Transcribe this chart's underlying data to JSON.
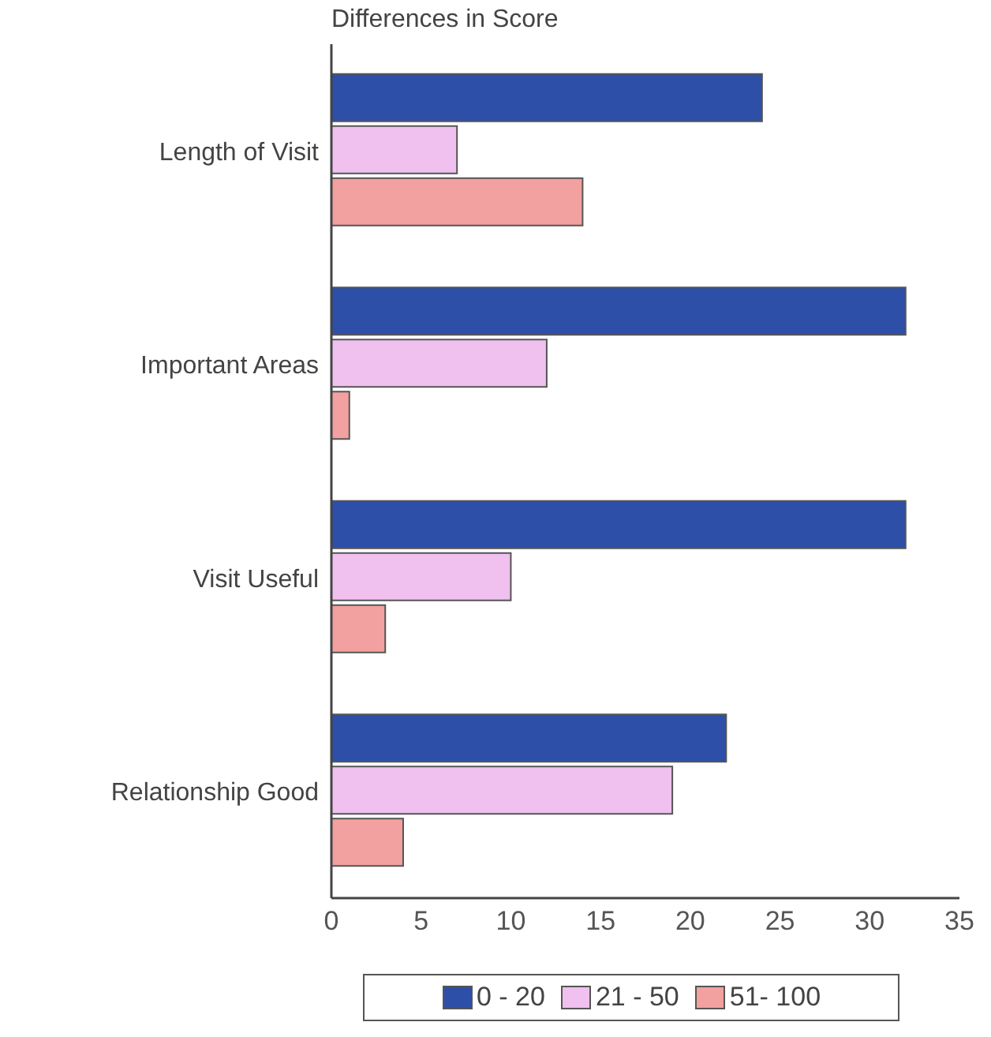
{
  "chart_data": {
    "type": "bar",
    "orientation": "horizontal",
    "title": "Differences in Score",
    "categories": [
      "Length of Visit",
      "Important Areas",
      "Visit Useful",
      "Relationship Good"
    ],
    "series": [
      {
        "name": "0 - 20",
        "color": "#2e4fa8",
        "values": [
          24,
          32,
          32,
          22
        ]
      },
      {
        "name": "21 - 50",
        "color": "#f0c0ee",
        "values": [
          7,
          12,
          10,
          19
        ]
      },
      {
        "name": "51- 100",
        "color": "#f2a0a0",
        "values": [
          14,
          1,
          3,
          4
        ]
      }
    ],
    "xlim": [
      0,
      35
    ],
    "xticks": [
      0,
      5,
      10,
      15,
      20,
      25,
      30,
      35
    ],
    "grid": false,
    "legend": "bottom"
  }
}
